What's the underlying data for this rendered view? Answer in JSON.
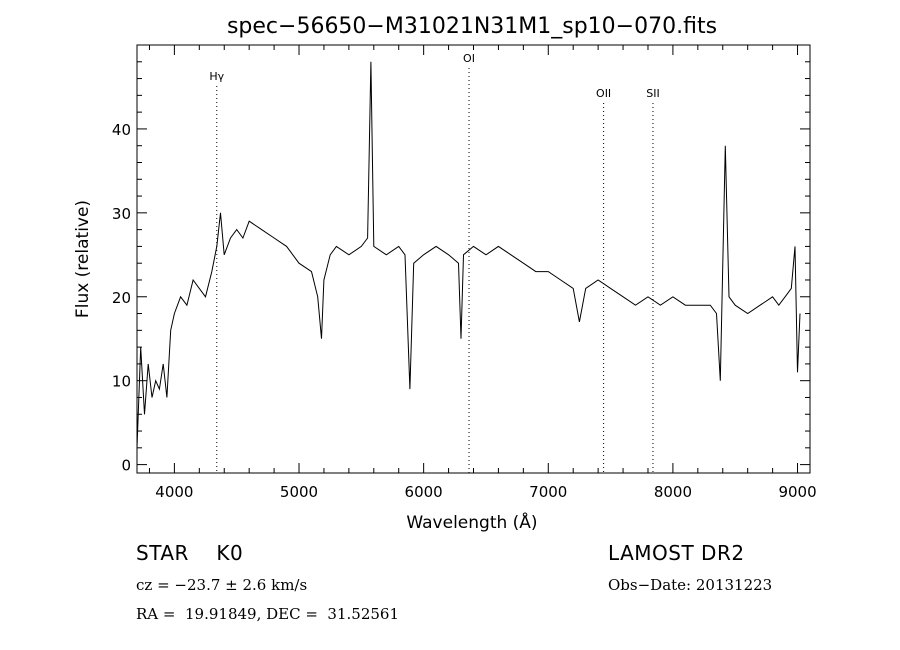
{
  "chart_data": {
    "type": "line",
    "title": "spec−56650−M31021N31M1_sp10−070.fits",
    "xlabel": "Wavelength (Å)",
    "ylabel": "Flux (relative)",
    "xlim": [
      3700,
      9100
    ],
    "ylim": [
      -1,
      50
    ],
    "xticks": [
      4000,
      5000,
      6000,
      7000,
      8000,
      9000
    ],
    "xtick_labels": [
      "4000",
      "5000",
      "6000",
      "7000",
      "8000",
      "9000"
    ],
    "yticks": [
      0,
      10,
      20,
      30,
      40
    ],
    "ytick_labels": [
      "0",
      "10",
      "20",
      "30",
      "40"
    ],
    "grid": false,
    "series": [
      {
        "x": [
          3700,
          3730,
          3760,
          3790,
          3820,
          3850,
          3880,
          3910,
          3940,
          3970,
          4000,
          4050,
          4100,
          4150,
          4200,
          4250,
          4300,
          4340,
          4370,
          4400,
          4450,
          4500,
          4550,
          4600,
          4700,
          4800,
          4900,
          5000,
          5100,
          5150,
          5180,
          5200,
          5250,
          5300,
          5400,
          5500,
          5550,
          5577,
          5600,
          5700,
          5800,
          5850,
          5890,
          5920,
          6000,
          6100,
          6200,
          6280,
          6300,
          6320,
          6400,
          6500,
          6600,
          6700,
          6800,
          6900,
          7000,
          7100,
          7200,
          7250,
          7300,
          7400,
          7500,
          7600,
          7700,
          7800,
          7900,
          8000,
          8100,
          8200,
          8300,
          8350,
          8380,
          8420,
          8450,
          8500,
          8600,
          8700,
          8800,
          8850,
          8900,
          8950,
          8980,
          9000,
          9020
        ],
        "y": [
          2,
          14,
          6,
          12,
          8,
          10,
          9,
          12,
          8,
          16,
          18,
          20,
          19,
          22,
          21,
          20,
          23,
          26,
          30,
          25,
          27,
          28,
          27,
          29,
          28,
          27,
          26,
          24,
          23,
          20,
          15,
          22,
          25,
          26,
          25,
          26,
          27,
          48,
          26,
          25,
          26,
          25,
          9,
          24,
          25,
          26,
          25,
          24,
          15,
          25,
          26,
          25,
          26,
          25,
          24,
          23,
          23,
          22,
          21,
          17,
          21,
          22,
          21,
          20,
          19,
          20,
          19,
          20,
          19,
          19,
          19,
          18,
          10,
          38,
          20,
          19,
          18,
          19,
          20,
          19,
          20,
          21,
          26,
          11,
          18
        ]
      }
    ],
    "annotations": [
      {
        "label": "Hγ",
        "x": 4340
      },
      {
        "label": "OI",
        "x": 6364
      },
      {
        "label": "OII",
        "x": 7444
      },
      {
        "label": "SII",
        "x": 7840
      }
    ]
  },
  "info": {
    "class": "STAR    K0",
    "survey": "LAMOST DR2",
    "cz": "cz = −23.7 ± 2.6 km/s",
    "obsdate": "Obs−Date: 20131223",
    "radec": "RA =  19.91849, DEC =  31.52561"
  }
}
